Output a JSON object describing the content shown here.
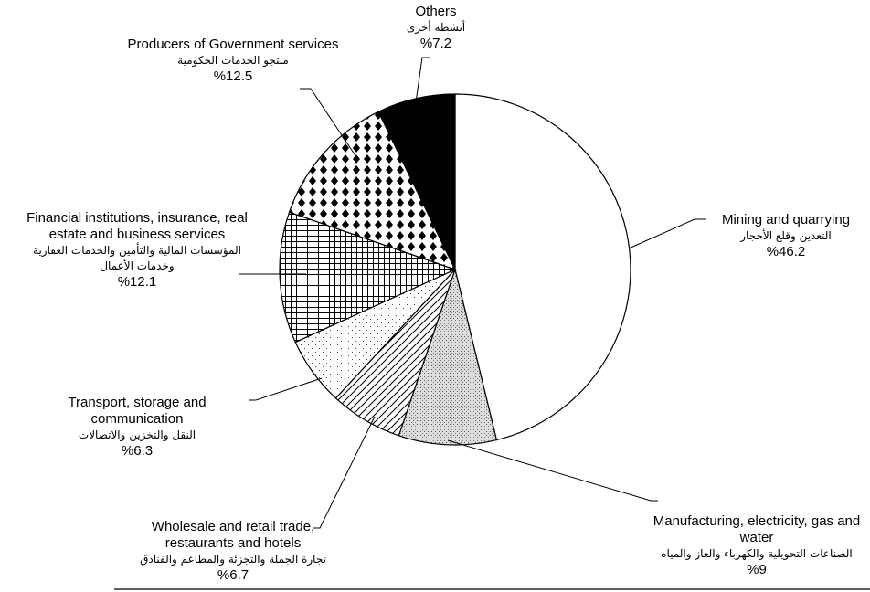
{
  "chart_data": {
    "type": "pie",
    "categories": [
      "Mining and quarrying",
      "Manufacturing, electricity, gas and water",
      "Wholesale and retail trade, restaurants and hotels",
      "Transport, storage and communication",
      "Financial institutions, insurance, real estate and business services",
      "Producers of Government services",
      "Others"
    ],
    "arabic_labels": [
      "التعدين وقلع الأحجار",
      "الصناعات التحويلية والكهرباء والغاز والمياه",
      "تجارة الجملة والتجزئة والمطاعم والفنادق",
      "النقل والتخزين والاتصالات",
      "المؤسسات المالية والتأمين والخدمات العقارية وخدمات الأعمال",
      "منتجو الخدمات الحكومية",
      "أنشطة أخرى"
    ],
    "values": [
      46.2,
      9,
      6.7,
      6.3,
      12.1,
      12.5,
      7.2
    ],
    "value_labels": [
      "%46.2",
      "%9",
      "%6.7",
      "%6.3",
      "%12.1",
      "%12.5",
      "%7.2"
    ]
  }
}
